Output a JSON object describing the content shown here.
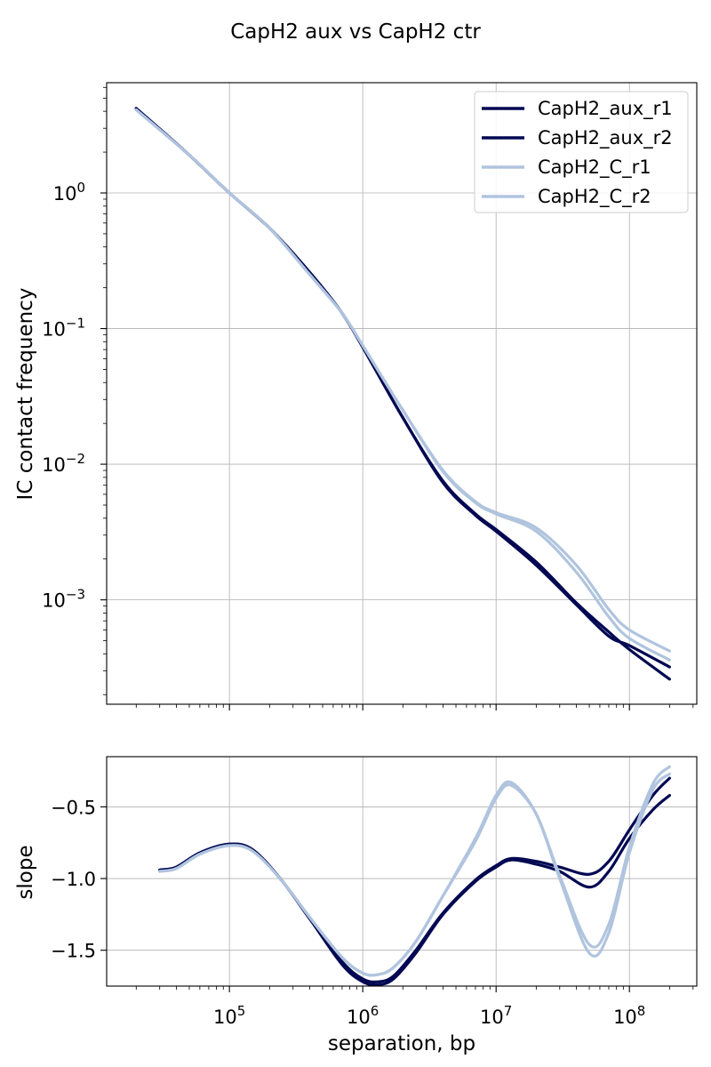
{
  "figure": {
    "title": "CapH2 aux vs CapH2 ctr"
  },
  "chart_data": [
    {
      "type": "line",
      "panel": "top",
      "xscale": "log",
      "yscale": "log",
      "xlabel": "",
      "ylabel": "IC contact frequency",
      "xlim": [
        12000,
        320000000
      ],
      "ylim": [
        0.00017,
        6.5
      ],
      "x_ticks": [
        100000,
        1000000,
        10000000,
        100000000
      ],
      "y_ticks": [
        {
          "value": 1,
          "mantissa": "10",
          "exponent": "0"
        },
        {
          "value": 0.1,
          "mantissa": "10",
          "exponent": "−1"
        },
        {
          "value": 0.01,
          "mantissa": "10",
          "exponent": "−2"
        },
        {
          "value": 0.001,
          "mantissa": "10",
          "exponent": "−3"
        }
      ],
      "grid": true,
      "legend": "top-right",
      "x": [
        20000,
        50000,
        100000,
        200000,
        400000,
        700000,
        1000000,
        2000000,
        4000000,
        7000000,
        10000000,
        20000000,
        40000000,
        70000000,
        100000000,
        200000000
      ],
      "series": [
        {
          "name": "CapH2_aux_r1",
          "color": "#020852",
          "values": [
            4.2,
            1.9,
            1.0,
            0.55,
            0.26,
            0.13,
            0.073,
            0.022,
            0.0075,
            0.0043,
            0.0033,
            0.0019,
            0.00095,
            0.00058,
            0.00043,
            0.00026
          ]
        },
        {
          "name": "CapH2_aux_r2",
          "color": "#020852",
          "values": [
            4.2,
            1.9,
            1.0,
            0.55,
            0.26,
            0.13,
            0.073,
            0.022,
            0.0073,
            0.0042,
            0.0032,
            0.0018,
            0.00092,
            0.00054,
            0.00046,
            0.00032
          ]
        },
        {
          "name": "CapH2_C_r1",
          "color": "#b0c4de",
          "values": [
            4.1,
            1.9,
            1.0,
            0.55,
            0.25,
            0.13,
            0.075,
            0.025,
            0.0088,
            0.0052,
            0.0043,
            0.0032,
            0.0016,
            0.00075,
            0.00052,
            0.00036
          ]
        },
        {
          "name": "CapH2_C_r2",
          "color": "#b0c4de",
          "values": [
            4.1,
            1.9,
            1.0,
            0.55,
            0.25,
            0.13,
            0.075,
            0.025,
            0.009,
            0.0053,
            0.0044,
            0.0034,
            0.0018,
            0.00085,
            0.0006,
            0.00042
          ]
        }
      ]
    },
    {
      "type": "line",
      "panel": "bottom",
      "xscale": "log",
      "yscale": "linear",
      "xlabel": "separation, bp",
      "ylabel": "slope",
      "xlim": [
        12000,
        320000000
      ],
      "ylim": [
        -1.75,
        -0.15
      ],
      "x_ticks": [
        {
          "value": 100000,
          "mantissa": "10",
          "exponent": "5"
        },
        {
          "value": 1000000,
          "mantissa": "10",
          "exponent": "6"
        },
        {
          "value": 10000000,
          "mantissa": "10",
          "exponent": "7"
        },
        {
          "value": 100000000,
          "mantissa": "10",
          "exponent": "8"
        }
      ],
      "y_ticks": [
        {
          "value": -0.5,
          "label": "−0.5"
        },
        {
          "value": -1.0,
          "label": "−1.0"
        },
        {
          "value": -1.5,
          "label": "−1.5"
        }
      ],
      "grid": true,
      "x": [
        30000,
        40000,
        60000,
        100000,
        150000,
        250000,
        400000,
        700000,
        1000000,
        1300000,
        1700000,
        2500000,
        4000000,
        7000000,
        10000000,
        13000000,
        20000000,
        30000000,
        50000000,
        70000000,
        100000000,
        150000000,
        200000000
      ],
      "series": [
        {
          "name": "CapH2_aux_r1",
          "color": "#020852",
          "values": [
            -0.94,
            -0.92,
            -0.82,
            -0.76,
            -0.8,
            -1.02,
            -1.28,
            -1.6,
            -1.72,
            -1.74,
            -1.7,
            -1.52,
            -1.25,
            -1.02,
            -0.92,
            -0.87,
            -0.9,
            -0.95,
            -1.06,
            -0.95,
            -0.72,
            -0.52,
            -0.42
          ]
        },
        {
          "name": "CapH2_aux_r2",
          "color": "#020852",
          "values": [
            -0.94,
            -0.92,
            -0.82,
            -0.76,
            -0.8,
            -1.02,
            -1.28,
            -1.58,
            -1.7,
            -1.72,
            -1.68,
            -1.5,
            -1.24,
            -1.01,
            -0.91,
            -0.86,
            -0.88,
            -0.92,
            -0.97,
            -0.88,
            -0.66,
            -0.42,
            -0.3
          ]
        },
        {
          "name": "CapH2_C_r1",
          "color": "#b0c4de",
          "values": [
            -0.95,
            -0.93,
            -0.83,
            -0.77,
            -0.81,
            -1.02,
            -1.27,
            -1.55,
            -1.66,
            -1.67,
            -1.62,
            -1.44,
            -1.12,
            -0.72,
            -0.42,
            -0.33,
            -0.55,
            -1.0,
            -1.52,
            -1.38,
            -0.82,
            -0.38,
            -0.27
          ]
        },
        {
          "name": "CapH2_C_r2",
          "color": "#b0c4de",
          "values": [
            -0.95,
            -0.93,
            -0.83,
            -0.77,
            -0.81,
            -1.02,
            -1.27,
            -1.55,
            -1.66,
            -1.67,
            -1.62,
            -1.44,
            -1.12,
            -0.74,
            -0.44,
            -0.35,
            -0.55,
            -0.98,
            -1.46,
            -1.32,
            -0.78,
            -0.34,
            -0.22
          ]
        }
      ]
    }
  ]
}
